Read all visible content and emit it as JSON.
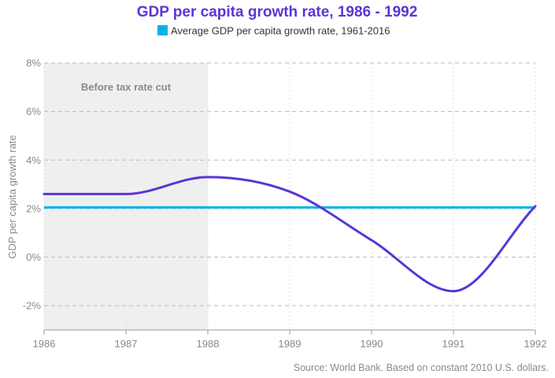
{
  "colors": {
    "title": "#5b35d5",
    "series": "#5b35d5",
    "average": "#00b3e6",
    "shade": "#efefef",
    "grid": "#bbbbbb",
    "axis_text": "#8a8a8a",
    "shade_text": "#8a8a8a"
  },
  "chart_data": {
    "type": "line",
    "title": "GDP per capita growth rate, 1986 - 1992",
    "xlabel": "",
    "ylabel": "GDP per capita growth rate",
    "x": [
      1986,
      1987,
      1988,
      1989,
      1990,
      1991,
      1992
    ],
    "x_tick_labels": [
      "1986",
      "1987",
      "1988",
      "1989",
      "1990",
      "1991",
      "1992"
    ],
    "xlim": [
      1986,
      1992
    ],
    "ylim": [
      -3,
      8
    ],
    "y_ticks": [
      -2,
      0,
      2,
      4,
      6,
      8
    ],
    "y_tick_labels": [
      "-2%",
      "0%",
      "2%",
      "4%",
      "6%",
      "8%"
    ],
    "grid": true,
    "series": [
      {
        "name": "GDP per capita growth rate",
        "values": [
          2.6,
          2.6,
          3.3,
          2.7,
          0.7,
          -1.4,
          2.1
        ]
      }
    ],
    "reference_line": {
      "name": "Average GDP per capita growth rate, 1961-2016",
      "value": 2.05
    },
    "shaded_region": {
      "x_start": 1986,
      "x_end": 1988,
      "label": "Before tax rate cut"
    },
    "legend": {
      "position": "top-center",
      "entries": [
        "Average GDP per capita growth rate, 1961-2016"
      ]
    },
    "source": "Source: World Bank. Based on constant 2010 U.S. dollars."
  }
}
